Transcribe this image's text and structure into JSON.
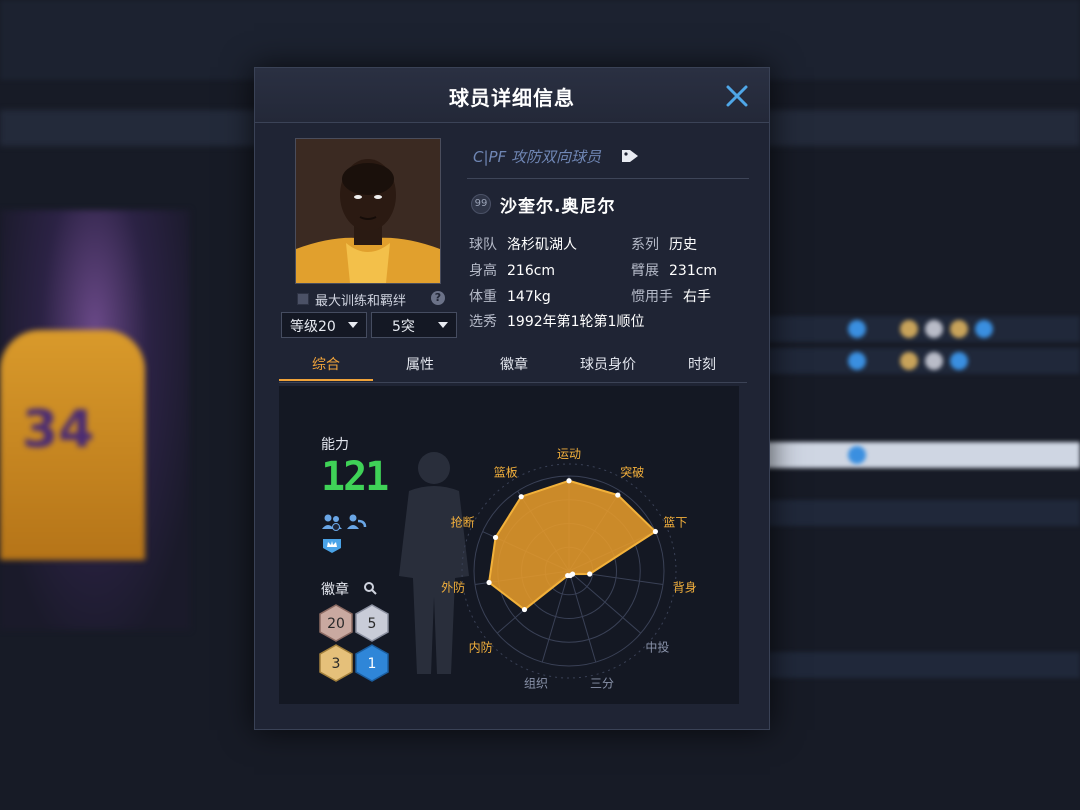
{
  "dialog": {
    "title": "球员详细信息"
  },
  "player": {
    "role": "C|PF 攻防双向球员",
    "rating_badge": "99",
    "name": "沙奎尔.奥尼尔",
    "team_label": "球队",
    "team": "洛杉矶湖人",
    "series_label": "系列",
    "series": "历史",
    "height_label": "身高",
    "height": "216cm",
    "wingspan_label": "臂展",
    "wingspan": "231cm",
    "weight_label": "体重",
    "weight": "147kg",
    "hand_label": "惯用手",
    "hand": "右手",
    "draft_label": "选秀",
    "draft": "1992年第1轮第1顺位"
  },
  "training": {
    "label": "最大训练和羁绊",
    "help": "?"
  },
  "selects": {
    "level": "等级20",
    "breakthrough": "5突"
  },
  "tabs": [
    {
      "label": "综合",
      "active": true
    },
    {
      "label": "属性",
      "active": false
    },
    {
      "label": "徽章",
      "active": false
    },
    {
      "label": "球员身价",
      "active": false
    },
    {
      "label": "时刻",
      "active": false
    }
  ],
  "overview": {
    "ability_label": "能力",
    "ability_value": "121",
    "badges_label": "徽章",
    "badges": [
      {
        "count": "20",
        "tier": "bronze",
        "color": "#c9a9a0"
      },
      {
        "count": "5",
        "tier": "silver",
        "color": "#c9ccd8"
      },
      {
        "count": "3",
        "tier": "gold",
        "color": "#e5c07a"
      },
      {
        "count": "1",
        "tier": "diamond",
        "color": "#2f86d8"
      }
    ]
  },
  "chart_data": {
    "type": "radar",
    "axes": [
      "运动",
      "突破",
      "篮下",
      "背身",
      "中投",
      "三分",
      "组织",
      "内防",
      "外防",
      "抢断",
      "篮板"
    ],
    "highlighted_axes": [
      "运动",
      "突破",
      "篮下",
      "背身",
      "内防",
      "外防",
      "抢断",
      "篮板"
    ],
    "values": [
      0.95,
      0.95,
      1.0,
      0.22,
      0.05,
      0.05,
      0.05,
      0.62,
      0.85,
      0.85,
      0.93
    ],
    "rings": 4,
    "fill_color": "#e59a2a",
    "stroke_color": "#f2b13a"
  }
}
